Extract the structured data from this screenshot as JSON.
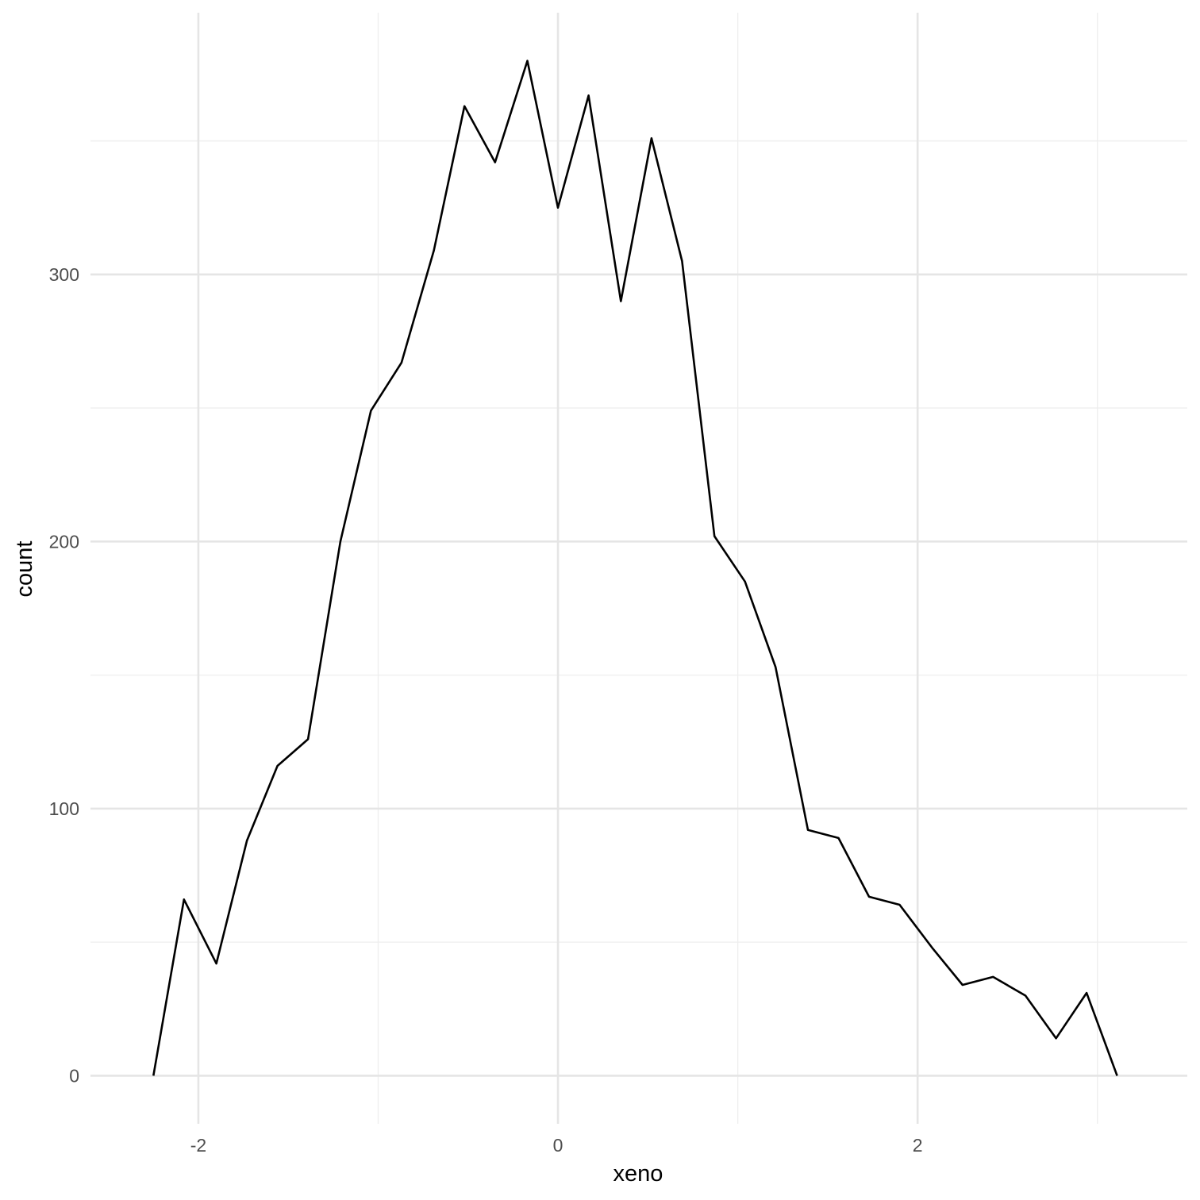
{
  "chart_data": {
    "type": "line",
    "stat": "frequency polygon",
    "xlabel": "xeno",
    "ylabel": "count",
    "xlim": [
      -2.6,
      3.5
    ],
    "ylim": [
      -18,
      398
    ],
    "x_ticks": [
      -2,
      0,
      2
    ],
    "x_tick_labels": [
      "-2",
      "0",
      "2"
    ],
    "y_ticks": [
      0,
      100,
      200,
      300
    ],
    "y_tick_labels": [
      "0",
      "100",
      "200",
      "300"
    ],
    "x_minor_grid": [
      -3,
      -1,
      1,
      3
    ],
    "y_minor_grid": [
      50,
      150,
      250,
      350
    ],
    "grid": true,
    "legend": "none",
    "line_color": "#000000",
    "series": [
      {
        "x": [
          -2.25,
          -2.08,
          -1.9,
          -1.73,
          -1.56,
          -1.39,
          -1.21,
          -1.04,
          -0.87,
          -0.69,
          -0.52,
          -0.35,
          -0.17,
          0.0,
          0.17,
          0.35,
          0.52,
          0.69,
          0.87,
          1.04,
          1.21,
          1.39,
          1.56,
          1.73,
          1.9,
          2.08,
          2.25,
          2.42,
          2.6,
          2.77,
          2.94,
          3.11
        ],
        "y": [
          0,
          66,
          42,
          88,
          116,
          126,
          200,
          249,
          267,
          309,
          363,
          342,
          380,
          325,
          367,
          290,
          351,
          305,
          202,
          185,
          153,
          92,
          89,
          67,
          64,
          48,
          34,
          37,
          30,
          14,
          31,
          0
        ]
      }
    ]
  }
}
